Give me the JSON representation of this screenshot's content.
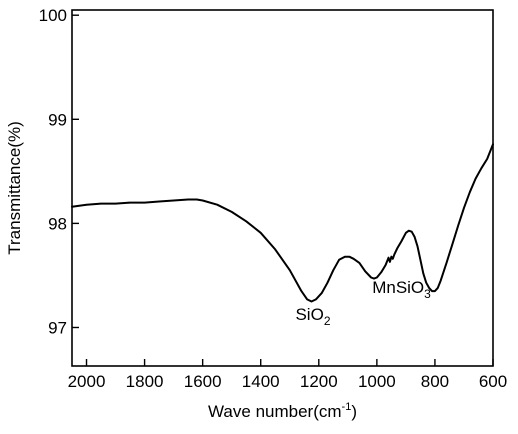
{
  "chart_data": {
    "type": "line",
    "title": "",
    "xlabel": {
      "text": "Wave number(cm",
      "sup": "-1",
      "close": ")"
    },
    "ylabel": "Transmittance(%)",
    "xlim": [
      2050,
      600
    ],
    "ylim": [
      96.63,
      100.05
    ],
    "x_reversed": true,
    "grid": false,
    "x_ticks": [
      2000,
      1800,
      1600,
      1400,
      1200,
      1000,
      800,
      600
    ],
    "x_tick_labels": [
      "2000",
      "1800",
      "1600",
      "1400",
      "1200",
      "1000",
      "800",
      "600"
    ],
    "y_ticks": [
      97,
      98,
      99,
      100
    ],
    "y_tick_labels": [
      "97",
      "98",
      "99",
      "100"
    ],
    "series": [
      {
        "color": "#000000",
        "x": [
          2050,
          2000,
          1950,
          1900,
          1850,
          1800,
          1750,
          1700,
          1650,
          1620,
          1600,
          1550,
          1500,
          1450,
          1400,
          1350,
          1300,
          1260,
          1240,
          1225,
          1210,
          1190,
          1170,
          1150,
          1130,
          1110,
          1095,
          1080,
          1060,
          1040,
          1020,
          1010,
          1000,
          985,
          970,
          960,
          955,
          950,
          945,
          940,
          930,
          915,
          900,
          890,
          880,
          870,
          860,
          850,
          840,
          830,
          820,
          810,
          800,
          790,
          780,
          760,
          740,
          720,
          700,
          680,
          660,
          640,
          620,
          600
        ],
        "y": [
          98.16,
          98.18,
          98.19,
          98.19,
          98.2,
          98.2,
          98.21,
          98.22,
          98.23,
          98.23,
          98.22,
          98.18,
          98.11,
          98.02,
          97.91,
          97.75,
          97.55,
          97.35,
          97.27,
          97.25,
          97.27,
          97.33,
          97.43,
          97.55,
          97.65,
          97.68,
          97.68,
          97.66,
          97.62,
          97.54,
          97.48,
          97.47,
          97.48,
          97.53,
          97.6,
          97.67,
          97.63,
          97.68,
          97.66,
          97.7,
          97.76,
          97.83,
          97.91,
          97.93,
          97.92,
          97.87,
          97.78,
          97.65,
          97.52,
          97.43,
          97.38,
          97.35,
          97.35,
          97.38,
          97.45,
          97.62,
          97.8,
          97.98,
          98.15,
          98.3,
          98.43,
          98.53,
          98.62,
          98.76
        ]
      }
    ],
    "annotations": [
      {
        "base": "SiO",
        "sub": "2",
        "x": 1220,
        "y": 97.07
      },
      {
        "base": "MnSiO",
        "sub": "3",
        "x": 915,
        "y": 97.33
      }
    ]
  }
}
